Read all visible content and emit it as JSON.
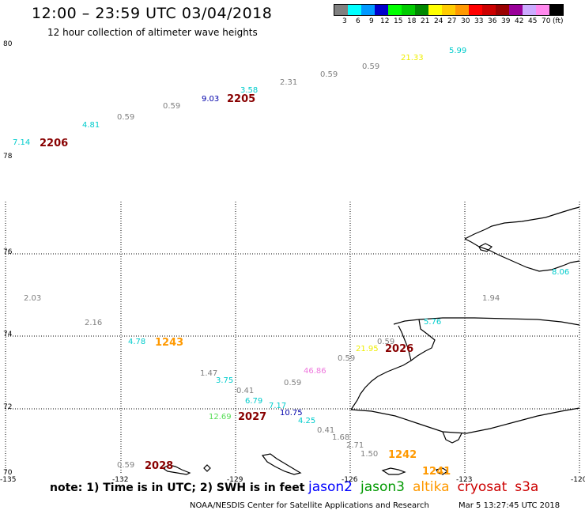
{
  "header": {
    "title": "12:00 – 23:59 UTC 03/04/2018",
    "subtitle": "12 hour collection of altimeter wave heights"
  },
  "legend": {
    "unit": "(ft)",
    "bins": [
      {
        "label": "3",
        "color": "#808080"
      },
      {
        "label": "6",
        "color": "#00ffff"
      },
      {
        "label": "9",
        "color": "#0099ff"
      },
      {
        "label": "12",
        "color": "#0000cc"
      },
      {
        "label": "15",
        "color": "#00ff00"
      },
      {
        "label": "18",
        "color": "#00cc00"
      },
      {
        "label": "21",
        "color": "#008800"
      },
      {
        "label": "24",
        "color": "#ffff00"
      },
      {
        "label": "27",
        "color": "#ffcc00"
      },
      {
        "label": "30",
        "color": "#ff9900"
      },
      {
        "label": "33",
        "color": "#ff0000"
      },
      {
        "label": "36",
        "color": "#cc0000"
      },
      {
        "label": "39",
        "color": "#990000"
      },
      {
        "label": "42",
        "color": "#990099"
      },
      {
        "label": "45",
        "color": "#ccaaff"
      },
      {
        "label": "70",
        "color": "#ff88ee"
      },
      {
        "label": "",
        "color": "#000000"
      }
    ]
  },
  "axes": {
    "lat_labels": [
      "80",
      "78",
      "76",
      "74",
      "72",
      "70"
    ],
    "lon_labels": [
      "-135",
      "-132",
      "-129",
      "-126",
      "-123",
      "-120"
    ]
  },
  "observations": [
    {
      "text": "7.14",
      "color": "#00cccc"
    },
    {
      "text": "4.81",
      "color": "#00cccc"
    },
    {
      "text": "0.59",
      "color": "#808080"
    },
    {
      "text": "0.59",
      "color": "#808080"
    },
    {
      "text": "9.03",
      "color": "#0000aa"
    },
    {
      "text": "3.58",
      "color": "#00cccc"
    },
    {
      "text": "2.31",
      "color": "#808080"
    },
    {
      "text": "0.59",
      "color": "#808080"
    },
    {
      "text": "0.59",
      "color": "#808080"
    },
    {
      "text": "21.33",
      "color": "#eeee00"
    },
    {
      "text": "5.99",
      "color": "#00cccc"
    },
    {
      "text": "8.06",
      "color": "#00cccc"
    },
    {
      "text": "2.03",
      "color": "#808080"
    },
    {
      "text": "1.94",
      "color": "#808080"
    },
    {
      "text": "2.16",
      "color": "#808080"
    },
    {
      "text": "5.76",
      "color": "#00cccc"
    },
    {
      "text": "4.78",
      "color": "#00cccc"
    },
    {
      "text": "21.95",
      "color": "#eeee00"
    },
    {
      "text": "0.59",
      "color": "#808080"
    },
    {
      "text": "0.59",
      "color": "#808080"
    },
    {
      "text": "46.86",
      "color": "#ee77dd"
    },
    {
      "text": "1.47",
      "color": "#808080"
    },
    {
      "text": "3.75",
      "color": "#00cccc"
    },
    {
      "text": "0.59",
      "color": "#808080"
    },
    {
      "text": "0.41",
      "color": "#808080"
    },
    {
      "text": "6.79",
      "color": "#00cccc"
    },
    {
      "text": "7.17",
      "color": "#00cccc"
    },
    {
      "text": "12.69",
      "color": "#55dd55"
    },
    {
      "text": "10.75",
      "color": "#0000aa"
    },
    {
      "text": "4.25",
      "color": "#00cccc"
    },
    {
      "text": "0.41",
      "color": "#808080"
    },
    {
      "text": "1.68",
      "color": "#808080"
    },
    {
      "text": "2.71",
      "color": "#808080"
    },
    {
      "text": "1.50",
      "color": "#808080"
    },
    {
      "text": "0.59",
      "color": "#808080"
    }
  ],
  "passes": [
    {
      "text": "2206",
      "color": "#880000"
    },
    {
      "text": "2205",
      "color": "#880000"
    },
    {
      "text": "1243",
      "color": "#ff9900"
    },
    {
      "text": "2026",
      "color": "#880000"
    },
    {
      "text": "2027",
      "color": "#880000"
    },
    {
      "text": "1242",
      "color": "#ff9900"
    },
    {
      "text": "1241",
      "color": "#ff9900"
    },
    {
      "text": "2028",
      "color": "#880000"
    }
  ],
  "footer": {
    "note": "note: 1) Time is in UTC; 2) SWH is in feet",
    "satellites": [
      {
        "text": "jason2",
        "color": "#0000ff"
      },
      {
        "text": "jason3",
        "color": "#009900"
      },
      {
        "text": "altika",
        "color": "#ff9900"
      },
      {
        "text": "cryosat",
        "color": "#cc0000"
      },
      {
        "text": "s3a",
        "color": "#cc0000"
      }
    ],
    "credit": "NOAA/NESDIS Center for Satellite Applications and Research",
    "timestamp": "Mar  5 13:27:45 UTC 2018"
  }
}
